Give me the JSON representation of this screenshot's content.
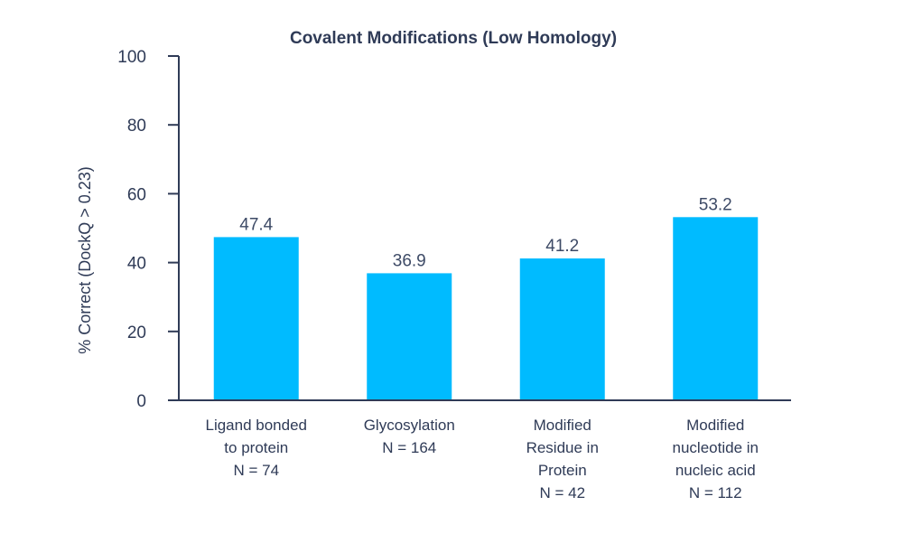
{
  "chart_data": {
    "type": "bar",
    "title": "Covalent Modifications (Low Homology)",
    "ylabel": "% Correct (DockQ > 0.23)",
    "xlabel": "",
    "ylim": [
      0,
      100
    ],
    "yticks": [
      0,
      20,
      40,
      60,
      80,
      100
    ],
    "grid": false,
    "bar_color": "#00bbff",
    "categories": [
      [
        "Ligand bonded",
        "to protein",
        "N = 74"
      ],
      [
        "Glycosylation",
        "N = 164"
      ],
      [
        "Modified",
        "Residue in",
        "Protein",
        "N = 42"
      ],
      [
        "Modified",
        "nucleotide in",
        "nucleic acid",
        "N = 112"
      ]
    ],
    "values": [
      47.4,
      36.9,
      41.2,
      53.2
    ],
    "value_labels": [
      "47.4",
      "36.9",
      "41.2",
      "53.2"
    ]
  }
}
